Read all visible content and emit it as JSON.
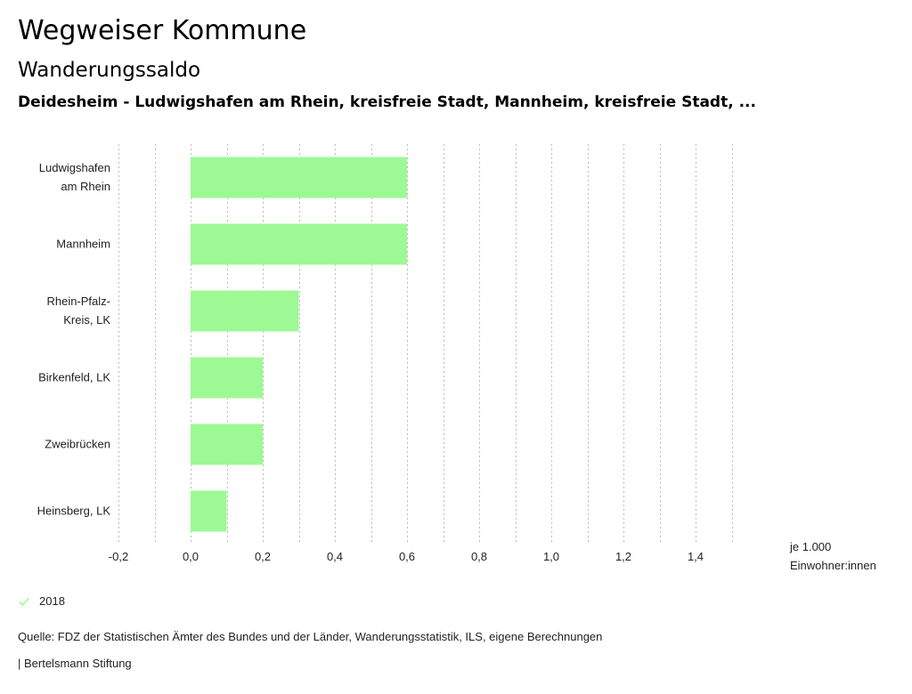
{
  "header": {
    "title": "Wegweiser Kommune",
    "subtitle": "Wanderungssaldo",
    "region": "Deidesheim - Ludwigshafen am Rhein, kreisfreie Stadt, Mannheim, kreisfreie Stadt, ..."
  },
  "chart_data": {
    "type": "bar",
    "orientation": "horizontal",
    "title": "Wanderungssaldo",
    "categories": [
      [
        "Ludwigshafen",
        "am Rhein"
      ],
      [
        "Mannheim"
      ],
      [
        "Rhein-Pfalz-",
        "Kreis, LK"
      ],
      [
        "Birkenfeld, LK"
      ],
      [
        "Zweibrücken"
      ],
      [
        "Heinsberg, LK"
      ]
    ],
    "series": [
      {
        "name": "2018",
        "color": "#9cf994",
        "values": [
          0.6,
          0.6,
          0.3,
          0.2,
          0.2,
          0.1
        ]
      }
    ],
    "xlim": [
      -0.2,
      1.5
    ],
    "xticks": [
      -0.2,
      0.0,
      0.2,
      0.4,
      0.6,
      0.8,
      1.0,
      1.2,
      1.4
    ],
    "xtick_labels": [
      "-0,2",
      "0,0",
      "0,2",
      "0,4",
      "0,6",
      "0,8",
      "1,0",
      "1,2",
      "1,4"
    ],
    "gridlines_step": 0.1,
    "grid": true,
    "xlabel": "je 1.000 Einwohner:innen",
    "xlabel_lines": [
      "je 1.000",
      "Einwohner:innen"
    ],
    "ylabel": "",
    "legend_position": "bottom-left"
  },
  "legend": {
    "items": [
      {
        "label": "2018",
        "color": "#9cf994"
      }
    ]
  },
  "footer": {
    "source": "Quelle: FDZ der Statistischen Ämter des Bundes und der Länder, Wanderungsstatistik, ILS, eigene Berechnungen",
    "credit": "| Bertelsmann Stiftung"
  }
}
